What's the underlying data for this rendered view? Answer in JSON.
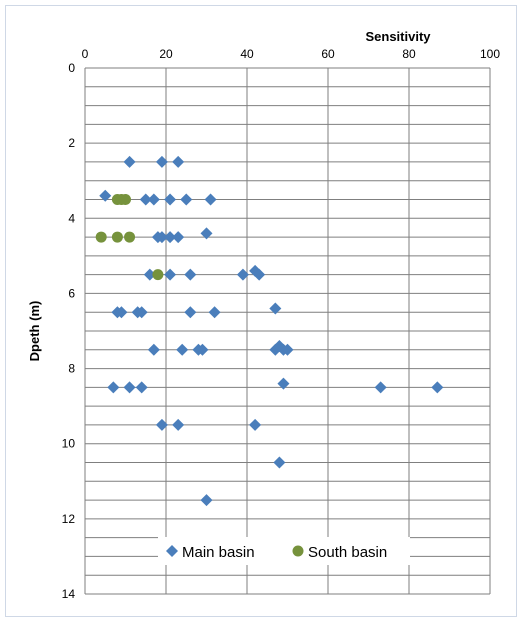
{
  "chart_data": {
    "type": "scatter",
    "title": "",
    "xlabel": "Sensitivity",
    "ylabel": "Dpeth (m)",
    "x_axis_position": "top",
    "y_axis_inverted": true,
    "xlim": [
      0,
      100
    ],
    "ylim": [
      0,
      14
    ],
    "x_ticks": [
      "0",
      "20",
      "40",
      "60",
      "80",
      "100"
    ],
    "y_ticks": [
      "0",
      "2",
      "4",
      "6",
      "8",
      "10",
      "12",
      "14"
    ],
    "grid": {
      "horizontal_step": 0.5,
      "vertical_step": 20
    },
    "legend_position": "bottom",
    "series": [
      {
        "name": "Main basin",
        "color": "#4a7ebb",
        "marker": "diamond",
        "points": [
          {
            "x": 11,
            "y": 2.5
          },
          {
            "x": 19,
            "y": 2.5
          },
          {
            "x": 23,
            "y": 2.5
          },
          {
            "x": 5,
            "y": 3.4
          },
          {
            "x": 15,
            "y": 3.5
          },
          {
            "x": 17,
            "y": 3.5
          },
          {
            "x": 21,
            "y": 3.5
          },
          {
            "x": 25,
            "y": 3.5
          },
          {
            "x": 31,
            "y": 3.5
          },
          {
            "x": 30,
            "y": 4.4
          },
          {
            "x": 18,
            "y": 4.5
          },
          {
            "x": 19,
            "y": 4.5
          },
          {
            "x": 21,
            "y": 4.5
          },
          {
            "x": 23,
            "y": 4.5
          },
          {
            "x": 16,
            "y": 5.5
          },
          {
            "x": 21,
            "y": 5.5
          },
          {
            "x": 26,
            "y": 5.5
          },
          {
            "x": 39,
            "y": 5.5
          },
          {
            "x": 42,
            "y": 5.4
          },
          {
            "x": 43,
            "y": 5.5
          },
          {
            "x": 47,
            "y": 6.4
          },
          {
            "x": 8,
            "y": 6.5
          },
          {
            "x": 9,
            "y": 6.5
          },
          {
            "x": 13,
            "y": 6.5
          },
          {
            "x": 14,
            "y": 6.5
          },
          {
            "x": 26,
            "y": 6.5
          },
          {
            "x": 32,
            "y": 6.5
          },
          {
            "x": 17,
            "y": 7.5
          },
          {
            "x": 24,
            "y": 7.5
          },
          {
            "x": 28,
            "y": 7.5
          },
          {
            "x": 29,
            "y": 7.5
          },
          {
            "x": 47,
            "y": 7.5
          },
          {
            "x": 48,
            "y": 7.4
          },
          {
            "x": 49,
            "y": 7.5
          },
          {
            "x": 50,
            "y": 7.5
          },
          {
            "x": 7,
            "y": 8.5
          },
          {
            "x": 11,
            "y": 8.5
          },
          {
            "x": 14,
            "y": 8.5
          },
          {
            "x": 49,
            "y": 8.4
          },
          {
            "x": 73,
            "y": 8.5
          },
          {
            "x": 87,
            "y": 8.5
          },
          {
            "x": 19,
            "y": 9.5
          },
          {
            "x": 23,
            "y": 9.5
          },
          {
            "x": 42,
            "y": 9.5
          },
          {
            "x": 48,
            "y": 10.5
          },
          {
            "x": 30,
            "y": 11.5
          }
        ]
      },
      {
        "name": "South basin",
        "color": "#76923c",
        "marker": "circle",
        "points": [
          {
            "x": 8,
            "y": 3.5
          },
          {
            "x": 9,
            "y": 3.5
          },
          {
            "x": 10,
            "y": 3.5
          },
          {
            "x": 4,
            "y": 4.5
          },
          {
            "x": 8,
            "y": 4.5
          },
          {
            "x": 11,
            "y": 4.5
          },
          {
            "x": 18,
            "y": 5.5
          }
        ]
      }
    ]
  }
}
